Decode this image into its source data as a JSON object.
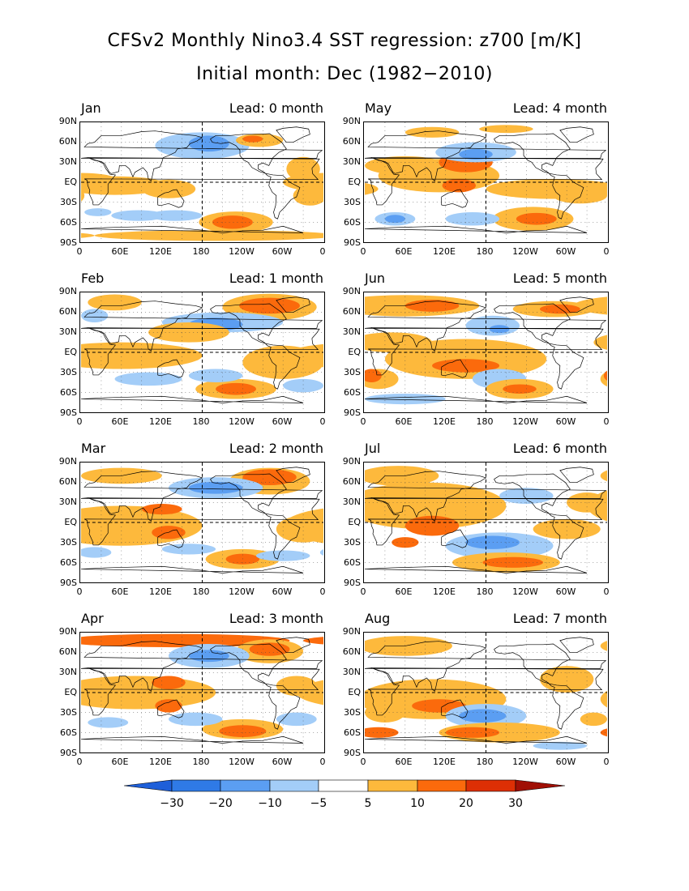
{
  "title": "CFSv2 Monthly Nino3.4 SST regression: z700 [m/K]",
  "subtitle": "Initial month: Dec (1982−2010)",
  "y_axis_labels": [
    "90N",
    "60N",
    "30N",
    "EQ",
    "30S",
    "60S",
    "90S"
  ],
  "x_axis_labels": [
    "0",
    "60E",
    "120E",
    "180",
    "120W",
    "60W",
    "0"
  ],
  "panels": [
    {
      "month": "Jan",
      "lead": "Lead: 0 month"
    },
    {
      "month": "May",
      "lead": "Lead: 4 month"
    },
    {
      "month": "Feb",
      "lead": "Lead: 1 month"
    },
    {
      "month": "Jun",
      "lead": "Lead: 5 month"
    },
    {
      "month": "Mar",
      "lead": "Lead: 2 month"
    },
    {
      "month": "Jul",
      "lead": "Lead: 6 month"
    },
    {
      "month": "Apr",
      "lead": "Lead: 3 month"
    },
    {
      "month": "Aug",
      "lead": "Lead: 7 month"
    }
  ],
  "colorbar": {
    "labels": [
      "−30",
      "−20",
      "−10",
      "−5",
      "5",
      "10",
      "20",
      "30"
    ],
    "colors": [
      "#1e5fd9",
      "#2f7ae6",
      "#5b9ef2",
      "#a3cdf8",
      "#ffffff",
      "#fdb93c",
      "#fb6a0c",
      "#dd2f05",
      "#a00f05"
    ]
  },
  "colors": {
    "neg_strong": "#2f7ae6",
    "neg_mid": "#5b9ef2",
    "neg_light": "#a3cdf8",
    "pos_light": "#fdb93c",
    "pos_mid": "#fb6a0c",
    "pos_strong": "#dd2f05"
  }
}
